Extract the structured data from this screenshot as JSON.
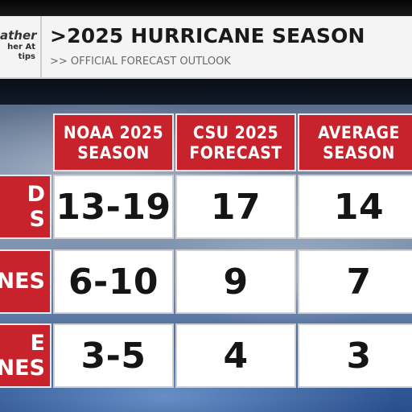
{
  "header": {
    "logo_lines": [
      "ather",
      "her At",
      "tips"
    ],
    "title": ">2025 HURRICANE SEASON",
    "subtitle": ">> OFFICIAL FORECAST OUTLOOK"
  },
  "table": {
    "columns": [
      "NOAA 2025\nSEASON",
      "CSU 2025\nFORECAST",
      "AVERAGE\nSEASON"
    ],
    "rows": [
      {
        "label": "D\nS",
        "values": [
          "13-19",
          "17",
          "14"
        ]
      },
      {
        "label": "NES",
        "values": [
          "6-10",
          "9",
          "7"
        ]
      },
      {
        "label": "E\nNES",
        "values": [
          "3-5",
          "4",
          "3"
        ]
      }
    ]
  },
  "colors": {
    "accent_red": "#c8232c",
    "header_bg": "#f4f4f4",
    "cell_bg": "#ffffff"
  }
}
